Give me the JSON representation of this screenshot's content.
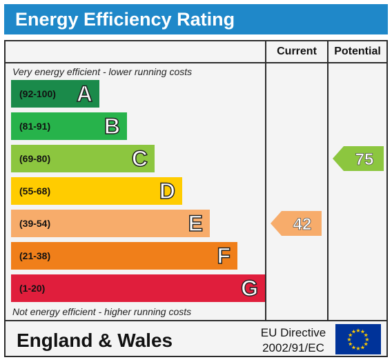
{
  "header": {
    "title": "Energy Efficiency Rating"
  },
  "columns": {
    "current": "Current",
    "potential": "Potential"
  },
  "notes": {
    "top": "Very energy efficient - lower running costs",
    "bottom": "Not energy efficient - higher running costs"
  },
  "chart_data": {
    "type": "bar",
    "categories": [
      "A",
      "B",
      "C",
      "D",
      "E",
      "F",
      "G"
    ],
    "bands": [
      {
        "letter": "A",
        "range": "(92-100)",
        "color": "#1a8a4a"
      },
      {
        "letter": "B",
        "range": "(81-91)",
        "color": "#27b34b"
      },
      {
        "letter": "C",
        "range": "(69-80)",
        "color": "#8cc63f"
      },
      {
        "letter": "D",
        "range": "(55-68)",
        "color": "#ffcc00"
      },
      {
        "letter": "E",
        "range": "(39-54)",
        "color": "#f7ac6b"
      },
      {
        "letter": "F",
        "range": "(21-38)",
        "color": "#f07f1a"
      },
      {
        "letter": "G",
        "range": "(1-20)",
        "color": "#e01e3c"
      }
    ],
    "current": {
      "value": 42,
      "band": "E",
      "color": "#f7ac6b"
    },
    "potential": {
      "value": 75,
      "band": "C",
      "color": "#8cc63f"
    }
  },
  "footer": {
    "region": "England & Wales",
    "directive_line1": "EU Directive",
    "directive_line2": "2002/91/EC"
  },
  "colors": {
    "header": "#1f88c9",
    "eu_flag": "#003399",
    "eu_stars": "#ffcc00"
  }
}
